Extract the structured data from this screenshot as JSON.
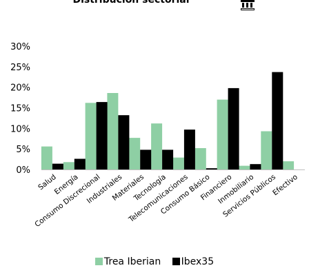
{
  "title": "Distribución sectorial",
  "logo_icon": "bank-building-icon",
  "chart_data": {
    "type": "bar",
    "title": "Distribución sectorial",
    "xlabel": "",
    "ylabel": "",
    "ylim": [
      0,
      30
    ],
    "yticks": [
      "0%",
      "5%",
      "10%",
      "15%",
      "20%",
      "25%",
      "30%"
    ],
    "ytick_values": [
      0,
      5,
      10,
      15,
      20,
      25,
      30
    ],
    "grid": false,
    "legend": "bottom",
    "categories": [
      "Salud",
      "Energía",
      "Consumo Discrecional",
      "Industriales",
      "Materiales",
      "Tecnología",
      "Telecomunicaciones",
      "Consumo Básico",
      "Financiero",
      "Inmobiliario",
      "Servicios Públicos",
      "Efectivo"
    ],
    "series": [
      {
        "name": "Trea Iberian",
        "color": "#8ecfa4",
        "values": [
          5.6,
          1.8,
          16.2,
          18.6,
          7.7,
          11.2,
          2.9,
          5.2,
          17.0,
          0.9,
          9.3,
          2.0
        ]
      },
      {
        "name": "Ibex35",
        "color": "#000000",
        "values": [
          1.4,
          2.6,
          16.4,
          13.2,
          4.8,
          4.8,
          9.7,
          0.3,
          19.8,
          1.3,
          23.7,
          0.0
        ]
      }
    ]
  }
}
